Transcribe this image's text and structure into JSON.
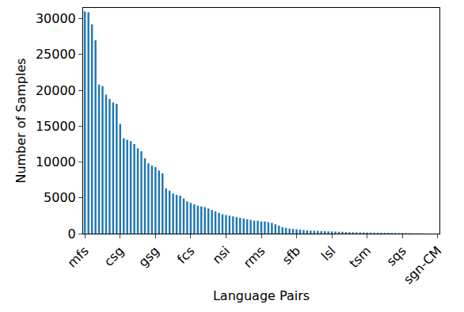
{
  "chart_data": {
    "type": "bar",
    "x_label": "Language Pairs",
    "y_label": "Number of Samples",
    "categories": [
      "mfs",
      null,
      null,
      null,
      null,
      null,
      null,
      null,
      null,
      null,
      "csg",
      null,
      null,
      null,
      null,
      null,
      null,
      null,
      null,
      null,
      "gsg",
      null,
      null,
      null,
      null,
      null,
      null,
      null,
      null,
      null,
      "fcs",
      null,
      null,
      null,
      null,
      null,
      null,
      null,
      null,
      null,
      "nsi",
      null,
      null,
      null,
      null,
      null,
      null,
      null,
      null,
      null,
      "rms",
      null,
      null,
      null,
      null,
      null,
      null,
      null,
      null,
      null,
      "sfb",
      null,
      null,
      null,
      null,
      null,
      null,
      null,
      null,
      null,
      "lsl",
      null,
      null,
      null,
      null,
      null,
      null,
      null,
      null,
      null,
      "tsm",
      null,
      null,
      null,
      null,
      null,
      null,
      null,
      null,
      null,
      "sqs",
      null,
      null,
      null,
      null,
      null,
      null,
      null,
      null,
      null,
      "sgn-CM"
    ],
    "values": [
      31000,
      30900,
      29200,
      27000,
      20800,
      20600,
      19400,
      18800,
      18300,
      18100,
      15300,
      13300,
      13100,
      12900,
      12500,
      11900,
      11500,
      10500,
      9800,
      9500,
      9300,
      8800,
      8400,
      6300,
      6000,
      5600,
      5400,
      5300,
      4900,
      4500,
      4300,
      4100,
      3900,
      3800,
      3700,
      3500,
      3300,
      3100,
      2900,
      2700,
      2600,
      2500,
      2400,
      2300,
      2200,
      2100,
      2000,
      1900,
      1800,
      1800,
      1700,
      1700,
      1600,
      1500,
      1300,
      1100,
      900,
      800,
      700,
      650,
      600,
      550,
      500,
      450,
      420,
      400,
      380,
      350,
      330,
      310,
      300,
      280,
      260,
      240,
      220,
      200,
      190,
      180,
      170,
      160,
      150,
      140,
      130,
      120,
      110,
      100,
      95,
      90,
      85,
      80,
      75,
      70,
      60,
      50,
      40,
      30,
      20,
      15,
      10,
      5,
      3
    ],
    "color": "#1f77b4",
    "ylim": [
      0,
      31500
    ],
    "yticks": [
      0,
      5000,
      10000,
      15000,
      20000,
      25000,
      30000
    ],
    "grid": false
  }
}
